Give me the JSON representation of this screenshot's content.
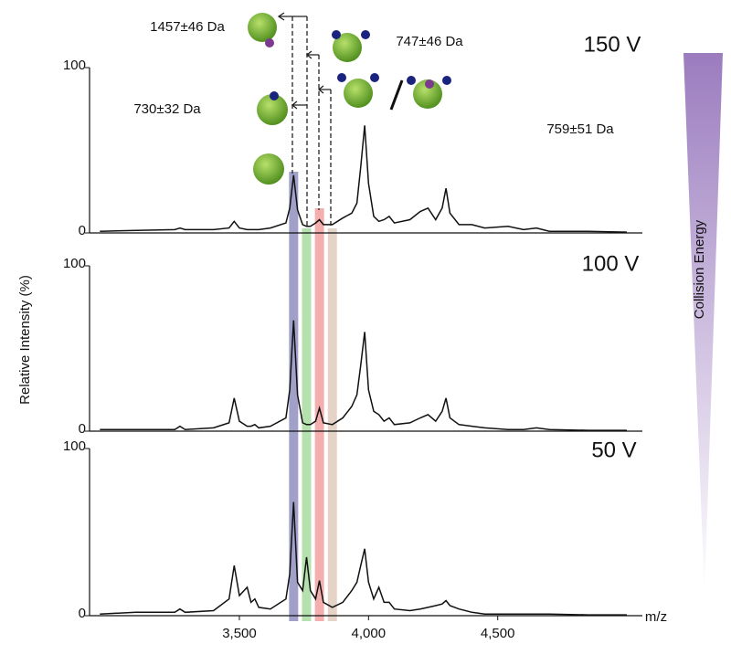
{
  "chart_data": [
    {
      "type": "line",
      "title": "150 V",
      "color": "#111111",
      "annotations": [
        "1457±46 Da",
        "747±46 Da",
        "730±32 Da",
        "759±51 Da"
      ],
      "highlight_bands": [
        {
          "x": 3710,
          "color": "#8f8fc0"
        },
        {
          "x": 3760,
          "color": "#a8dca0"
        },
        {
          "x": 3810,
          "color": "#f2a0a0"
        },
        {
          "x": 3860,
          "color": "#e2cbbd"
        }
      ],
      "x": [
        2960,
        3100,
        3250,
        3270,
        3290,
        3400,
        3460,
        3480,
        3500,
        3530,
        3545,
        3560,
        3575,
        3620,
        3680,
        3695,
        3710,
        3725,
        3745,
        3760,
        3775,
        3795,
        3810,
        3825,
        3860,
        3900,
        3935,
        3955,
        3970,
        3985,
        4000,
        4020,
        4040,
        4060,
        4080,
        4100,
        4160,
        4200,
        4230,
        4260,
        4285,
        4300,
        4315,
        4350,
        4400,
        4450,
        4540,
        4600,
        4650,
        4700,
        4850,
        5000
      ],
      "values": [
        1,
        1.5,
        2,
        3,
        2,
        2,
        3,
        7,
        3,
        2,
        2,
        2,
        2,
        3,
        6,
        15,
        35,
        14,
        5,
        4,
        4,
        6,
        8,
        5,
        5,
        9,
        12,
        18,
        40,
        65,
        30,
        10,
        7,
        8,
        10,
        6,
        8,
        13,
        15,
        8,
        15,
        27,
        12,
        5,
        5,
        3,
        4,
        2,
        3,
        1,
        1,
        0.5
      ],
      "xlim": [
        2920,
        5060
      ],
      "ylim": [
        0,
        100
      ],
      "yticks": [
        0,
        100
      ]
    },
    {
      "type": "line",
      "title": "100 V",
      "color": "#111111",
      "y_label": "Relative Intensity (%)",
      "x": [
        2960,
        3100,
        3250,
        3270,
        3290,
        3400,
        3460,
        3480,
        3500,
        3530,
        3545,
        3560,
        3575,
        3620,
        3680,
        3695,
        3710,
        3725,
        3745,
        3760,
        3775,
        3795,
        3810,
        3825,
        3860,
        3900,
        3935,
        3955,
        3970,
        3985,
        4000,
        4020,
        4040,
        4060,
        4080,
        4100,
        4160,
        4200,
        4230,
        4260,
        4285,
        4300,
        4315,
        4350,
        4400,
        4450,
        4540,
        4600,
        4650,
        4700,
        4850,
        5000
      ],
      "values": [
        1,
        1,
        1,
        3,
        1,
        2,
        5,
        20,
        6,
        3,
        3,
        4,
        2,
        3,
        8,
        25,
        67,
        22,
        5,
        4,
        4,
        6,
        14,
        5,
        4,
        8,
        15,
        22,
        40,
        60,
        25,
        12,
        10,
        6,
        8,
        4,
        5,
        8,
        10,
        6,
        12,
        20,
        8,
        4,
        3,
        2,
        1,
        1,
        2,
        1,
        0.5,
        0.5
      ],
      "xlim": [
        2920,
        5060
      ],
      "ylim": [
        0,
        100
      ],
      "yticks": [
        0,
        100
      ]
    },
    {
      "type": "line",
      "title": "50 V",
      "color": "#111111",
      "x_label": "m/z",
      "x": [
        2960,
        3100,
        3250,
        3270,
        3290,
        3400,
        3460,
        3480,
        3500,
        3530,
        3545,
        3560,
        3575,
        3620,
        3680,
        3695,
        3710,
        3725,
        3745,
        3760,
        3775,
        3795,
        3810,
        3825,
        3860,
        3900,
        3935,
        3955,
        3970,
        3985,
        4000,
        4020,
        4040,
        4060,
        4080,
        4100,
        4160,
        4200,
        4230,
        4260,
        4285,
        4300,
        4315,
        4350,
        4400,
        4450,
        4540,
        4600,
        4650,
        4700,
        4850,
        5000
      ],
      "values": [
        1,
        2,
        2,
        4,
        2,
        3,
        10,
        30,
        12,
        17,
        8,
        10,
        5,
        4,
        10,
        25,
        68,
        20,
        15,
        35,
        15,
        10,
        21,
        8,
        5,
        8,
        15,
        20,
        30,
        40,
        20,
        10,
        17,
        8,
        8,
        4,
        3,
        4,
        5,
        6,
        7,
        9,
        6,
        4,
        2,
        1,
        1,
        1,
        1,
        1,
        0.5,
        0.5
      ],
      "xlim": [
        2920,
        5060
      ],
      "ylim": [
        0,
        100
      ],
      "yticks": [
        0,
        100
      ],
      "xticks": [
        {
          "value": 3500,
          "label": "3,500"
        },
        {
          "value": 4000,
          "label": "4,000"
        },
        {
          "value": 4500,
          "label": "4,500"
        }
      ]
    }
  ],
  "side_label": "Collision Energy"
}
